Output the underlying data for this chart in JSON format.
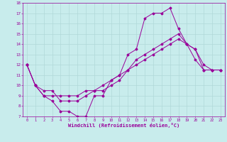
{
  "title": "",
  "xlabel": "Windchill (Refroidissement éolien,°C)",
  "ylabel": "",
  "xlim": [
    -0.5,
    23.5
  ],
  "ylim": [
    7,
    18
  ],
  "xticks": [
    0,
    1,
    2,
    3,
    4,
    5,
    6,
    7,
    8,
    9,
    10,
    11,
    12,
    13,
    14,
    15,
    16,
    17,
    18,
    19,
    20,
    21,
    22,
    23
  ],
  "yticks": [
    7,
    8,
    9,
    10,
    11,
    12,
    13,
    14,
    15,
    16,
    17,
    18
  ],
  "bg_color": "#c8ecec",
  "line_color": "#990099",
  "grid_color": "#b0d8d8",
  "lines": [
    {
      "x": [
        0,
        1,
        2,
        3,
        4,
        5,
        6,
        7,
        8,
        9,
        10,
        11,
        12,
        13,
        14,
        15,
        16,
        17,
        18,
        19,
        20,
        21,
        22,
        23
      ],
      "y": [
        12,
        10,
        9,
        8.5,
        7.5,
        7.5,
        7.0,
        7.0,
        9.0,
        9.0,
        10.5,
        11.0,
        13.0,
        13.5,
        16.5,
        17.0,
        17.0,
        17.5,
        15.5,
        14.0,
        12.5,
        11.5,
        11.5,
        11.5
      ]
    },
    {
      "x": [
        0,
        1,
        2,
        3,
        4,
        5,
        6,
        7,
        8,
        9,
        10,
        11,
        12,
        13,
        14,
        15,
        16,
        17,
        18,
        19,
        20,
        21,
        22,
        23
      ],
      "y": [
        12,
        10,
        9.5,
        9.5,
        8.5,
        8.5,
        8.5,
        9.0,
        9.5,
        9.5,
        10.0,
        10.5,
        11.5,
        12.5,
        13.0,
        13.5,
        14.0,
        14.5,
        15.0,
        14.0,
        13.5,
        12.0,
        11.5,
        11.5
      ]
    },
    {
      "x": [
        0,
        1,
        2,
        3,
        4,
        5,
        6,
        7,
        8,
        9,
        10,
        11,
        12,
        13,
        14,
        15,
        16,
        17,
        18,
        19,
        20,
        21,
        22,
        23
      ],
      "y": [
        12,
        10,
        9,
        9,
        9,
        9,
        9,
        9.5,
        9.5,
        10.0,
        10.5,
        11.0,
        11.5,
        12.0,
        12.5,
        13.0,
        13.5,
        14.0,
        14.5,
        14.0,
        13.5,
        11.5,
        11.5,
        11.5
      ]
    }
  ]
}
